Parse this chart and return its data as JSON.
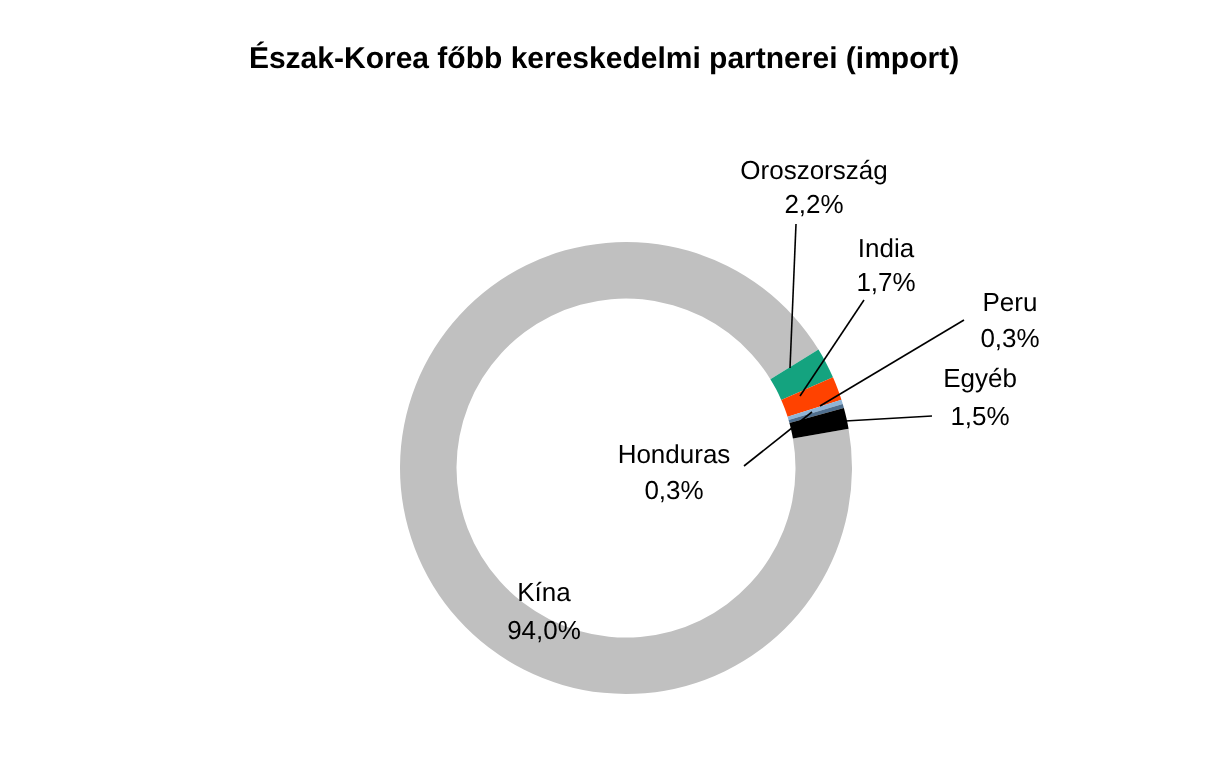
{
  "chart_data": {
    "type": "donut",
    "title": "Észak-Korea főbb kereskedelmi partnerei (import)",
    "categories": [
      "Kína",
      "Oroszország",
      "India",
      "Peru",
      "Honduras",
      "Egyéb"
    ],
    "values": [
      94.0,
      2.2,
      1.7,
      0.3,
      0.3,
      1.5
    ],
    "colors": [
      "#c0c0c0",
      "#14a37f",
      "#ff4200",
      "#8fb4d6",
      "#4f6f8f",
      "#000000"
    ],
    "value_labels": [
      "94,0%",
      "2,2%",
      "1,7%",
      "0,3%",
      "0,3%",
      "1,5%"
    ]
  }
}
